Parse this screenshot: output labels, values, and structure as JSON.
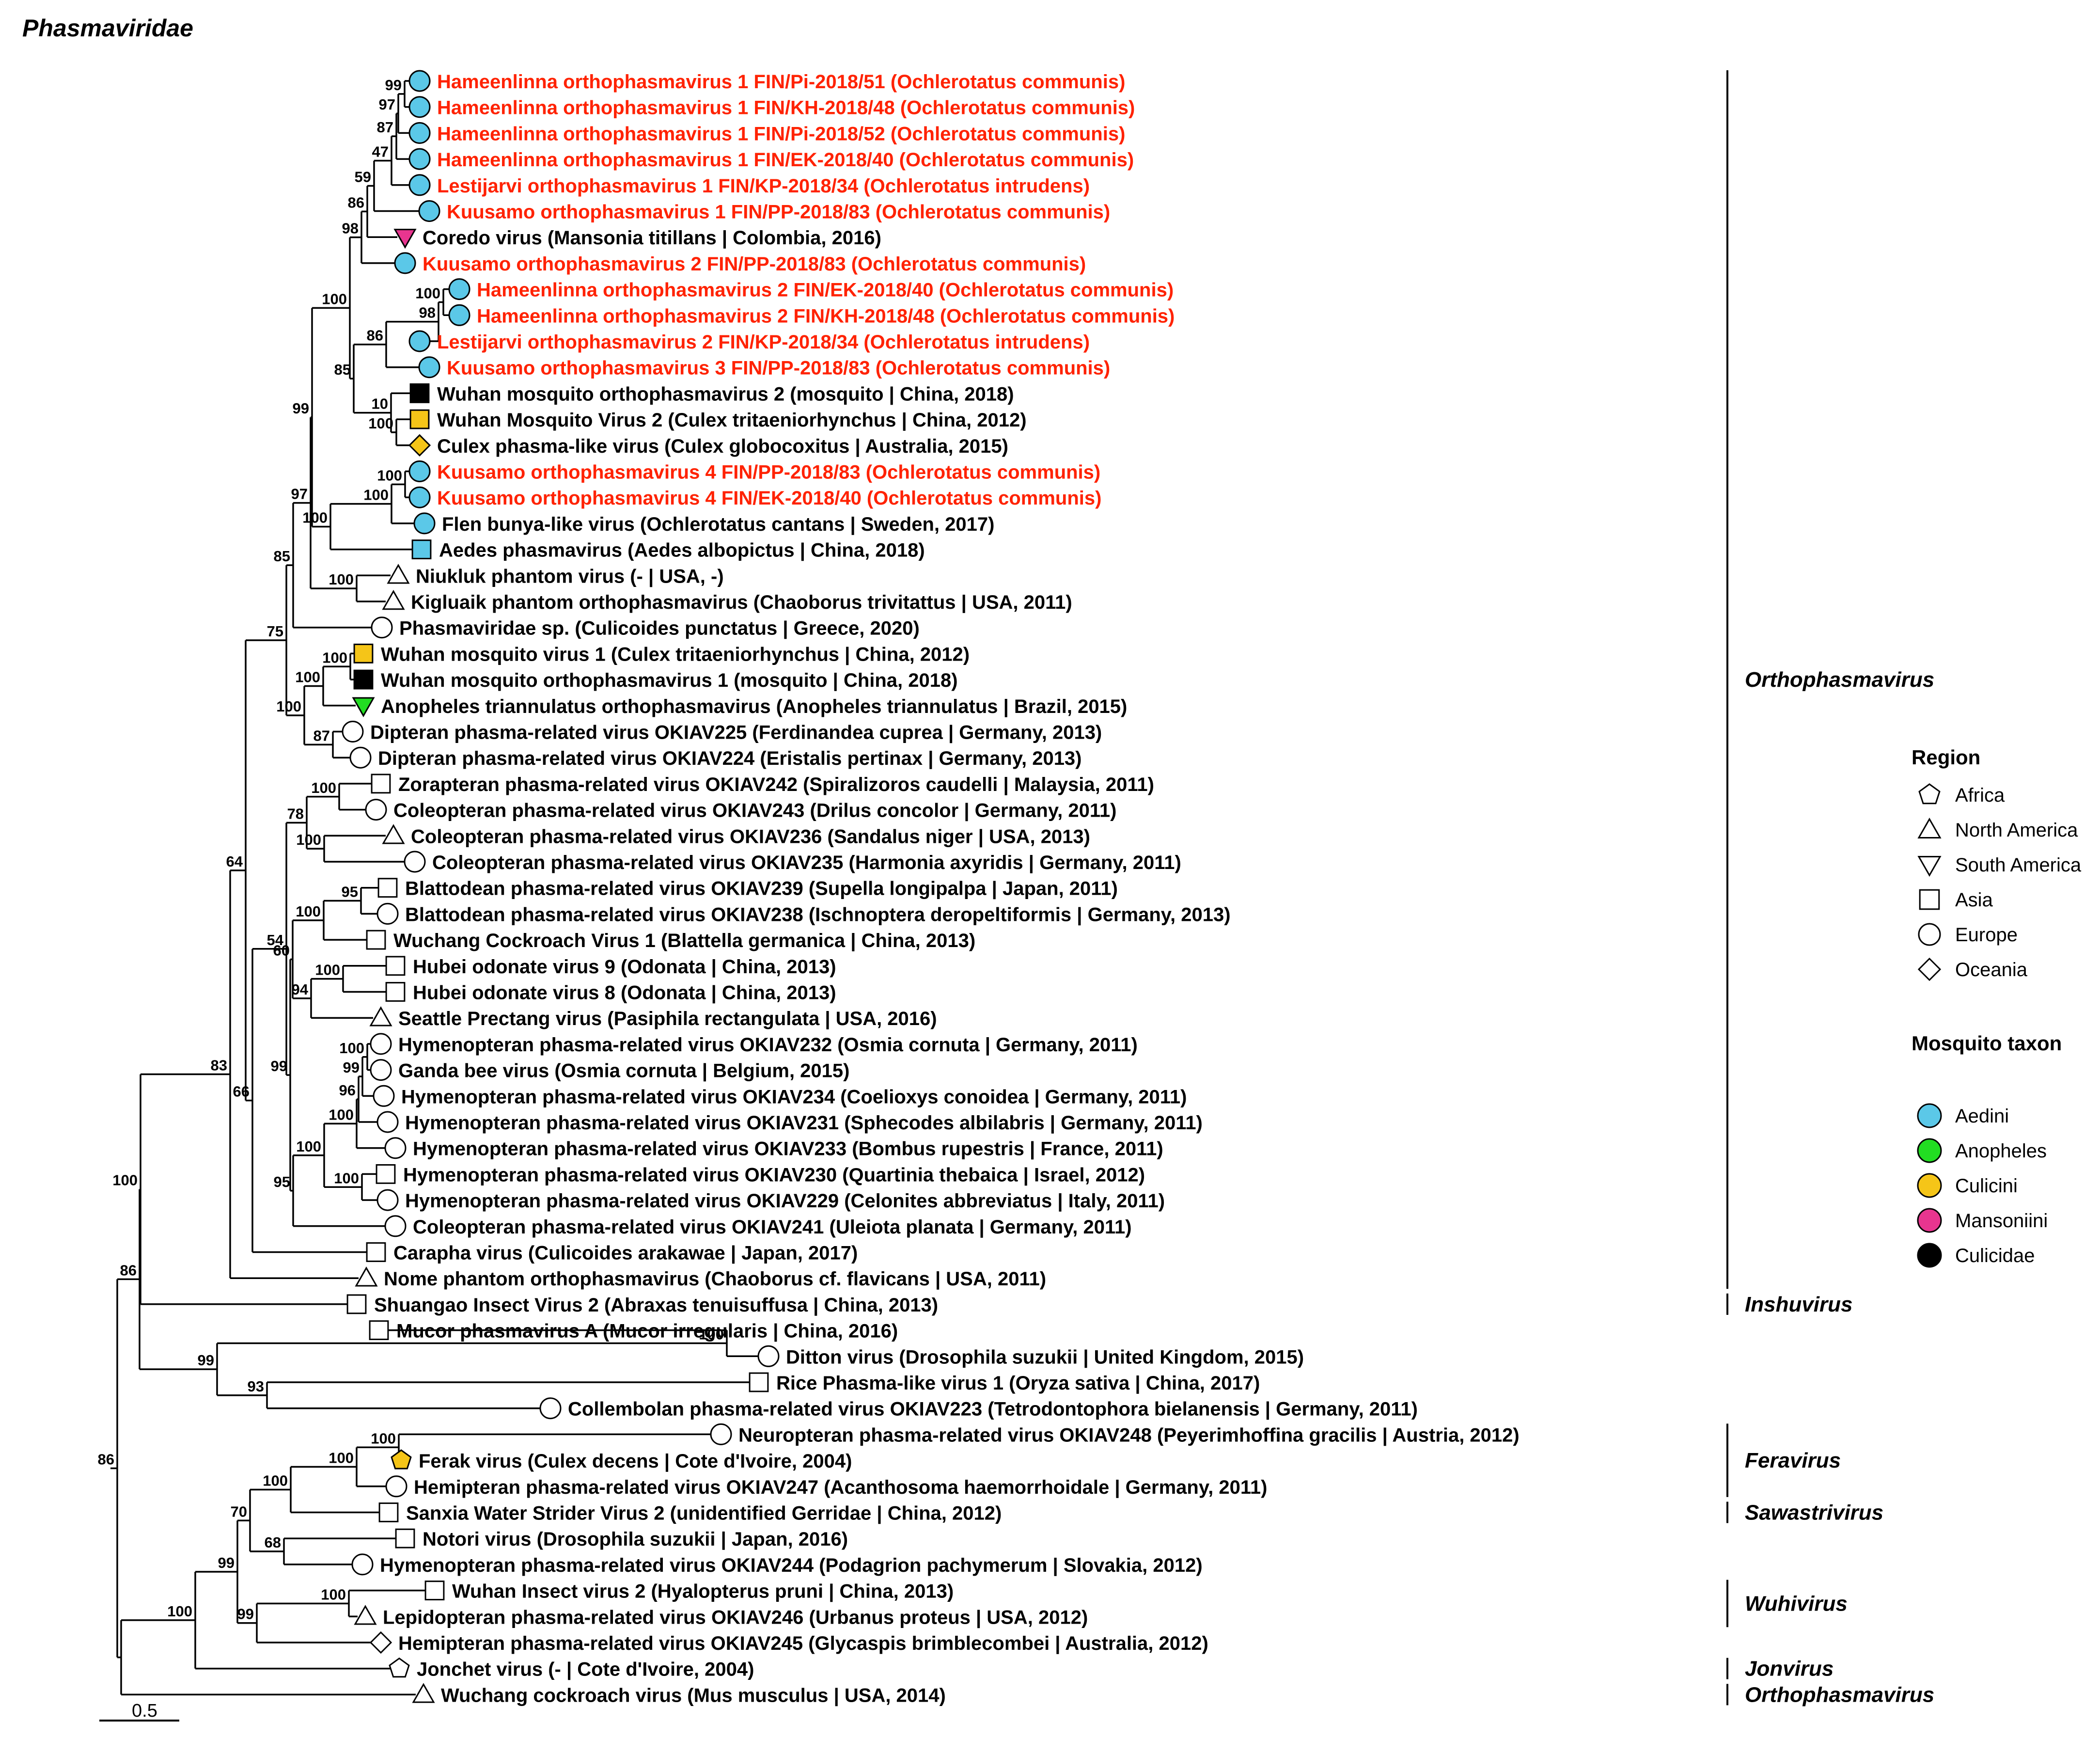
{
  "title": "Phasmaviridae",
  "scale_label": "0.5",
  "colors": {
    "branch": "#000000",
    "highlight_label": "#ff2200",
    "normal_label": "#000000",
    "Aedini": "#5bc8e8",
    "Anopheles": "#22dd22",
    "Culicini": "#f5c518",
    "Mansoniini": "#e8358f",
    "Culicidae": "#000000",
    "none": "#ffffff"
  },
  "legend": {
    "region_title": "Region",
    "regions": [
      {
        "shape": "pentagon",
        "label": "Africa"
      },
      {
        "shape": "triangle-up",
        "label": "North America"
      },
      {
        "shape": "triangle-down",
        "label": "South America"
      },
      {
        "shape": "square",
        "label": "Asia"
      },
      {
        "shape": "circle",
        "label": "Europe"
      },
      {
        "shape": "diamond",
        "label": "Oceania"
      }
    ],
    "taxon_title": "Mosquito taxon",
    "taxa": [
      {
        "color_key": "Aedini",
        "label": "Aedini"
      },
      {
        "color_key": "Anopheles",
        "label": "Anopheles"
      },
      {
        "color_key": "Culicini",
        "label": "Culicini"
      },
      {
        "color_key": "Mansoniini",
        "label": "Mansoniini"
      },
      {
        "color_key": "Culicidae",
        "label": "Culicidae"
      }
    ]
  },
  "genera": [
    {
      "label": "Orthophasmavirus",
      "from": 0,
      "to": 46
    },
    {
      "label": "Inshuvirus",
      "from": 47,
      "to": 47
    },
    {
      "label": "Feravirus",
      "from": 52,
      "to": 54
    },
    {
      "label": "Sawastrivirus",
      "from": 55,
      "to": 55
    },
    {
      "label": "Wuhivirus",
      "from": 58,
      "to": 59
    },
    {
      "label": "Jonvirus",
      "from": 61,
      "to": 61
    },
    {
      "label": "Orthophasmavirus",
      "from": 62,
      "to": 62
    }
  ],
  "tips": [
    {
      "label": "Hameenlinna orthophasmavirus 1 FIN/Pi-2018/51 (Ochlerotatus communis)",
      "shape": "circle",
      "fill": "Aedini",
      "red": true
    },
    {
      "label": "Hameenlinna orthophasmavirus 1 FIN/KH-2018/48 (Ochlerotatus communis)",
      "shape": "circle",
      "fill": "Aedini",
      "red": true
    },
    {
      "label": "Hameenlinna orthophasmavirus 1 FIN/Pi-2018/52 (Ochlerotatus communis)",
      "shape": "circle",
      "fill": "Aedini",
      "red": true
    },
    {
      "label": "Hameenlinna orthophasmavirus 1 FIN/EK-2018/40 (Ochlerotatus communis)",
      "shape": "circle",
      "fill": "Aedini",
      "red": true
    },
    {
      "label": "Lestijarvi orthophasmavirus 1 FIN/KP-2018/34 (Ochlerotatus intrudens)",
      "shape": "circle",
      "fill": "Aedini",
      "red": true
    },
    {
      "label": "Kuusamo orthophasmavirus 1 FIN/PP-2018/83 (Ochlerotatus communis)",
      "shape": "circle",
      "fill": "Aedini",
      "red": true
    },
    {
      "label": "Coredo virus (Mansonia titillans | Colombia, 2016)",
      "shape": "triangle-down",
      "fill": "Mansoniini",
      "red": false
    },
    {
      "label": "Kuusamo orthophasmavirus 2 FIN/PP-2018/83 (Ochlerotatus communis)",
      "shape": "circle",
      "fill": "Aedini",
      "red": true
    },
    {
      "label": "Hameenlinna orthophasmavirus 2 FIN/EK-2018/40 (Ochlerotatus communis)",
      "shape": "circle",
      "fill": "Aedini",
      "red": true
    },
    {
      "label": "Hameenlinna orthophasmavirus 2 FIN/KH-2018/48 (Ochlerotatus communis)",
      "shape": "circle",
      "fill": "Aedini",
      "red": true
    },
    {
      "label": "Lestijarvi orthophasmavirus 2 FIN/KP-2018/34 (Ochlerotatus intrudens)",
      "shape": "circle",
      "fill": "Aedini",
      "red": true
    },
    {
      "label": "Kuusamo orthophasmavirus 3 FIN/PP-2018/83 (Ochlerotatus communis)",
      "shape": "circle",
      "fill": "Aedini",
      "red": true
    },
    {
      "label": "Wuhan mosquito orthophasmavirus 2 (mosquito | China, 2018)",
      "shape": "square",
      "fill": "Culicidae",
      "red": false
    },
    {
      "label": "Wuhan Mosquito Virus 2 (Culex tritaeniorhynchus | China, 2012)",
      "shape": "square",
      "fill": "Culicini",
      "red": false
    },
    {
      "label": "Culex phasma-like virus (Culex globocoxitus | Australia, 2015)",
      "shape": "diamond",
      "fill": "Culicini",
      "red": false
    },
    {
      "label": "Kuusamo orthophasmavirus 4 FIN/PP-2018/83 (Ochlerotatus communis)",
      "shape": "circle",
      "fill": "Aedini",
      "red": true
    },
    {
      "label": "Kuusamo orthophasmavirus 4 FIN/EK-2018/40 (Ochlerotatus communis)",
      "shape": "circle",
      "fill": "Aedini",
      "red": true
    },
    {
      "label": "Flen bunya-like virus (Ochlerotatus cantans | Sweden, 2017)",
      "shape": "circle",
      "fill": "Aedini",
      "red": false
    },
    {
      "label": "Aedes phasmavirus (Aedes albopictus | China, 2018)",
      "shape": "square",
      "fill": "Aedini",
      "red": false
    },
    {
      "label": "Niukluk phantom virus (- | USA, -)",
      "shape": "triangle-up",
      "fill": "none",
      "red": false
    },
    {
      "label": "Kigluaik phantom orthophasmavirus (Chaoborus trivitattus | USA, 2011)",
      "shape": "triangle-up",
      "fill": "none",
      "red": false
    },
    {
      "label": "Phasmaviridae sp. (Culicoides punctatus | Greece, 2020)",
      "shape": "circle",
      "fill": "none",
      "red": false
    },
    {
      "label": "Wuhan mosquito virus 1 (Culex tritaeniorhynchus | China, 2012)",
      "shape": "square",
      "fill": "Culicini",
      "red": false
    },
    {
      "label": "Wuhan mosquito orthophasmavirus 1 (mosquito | China, 2018)",
      "shape": "square",
      "fill": "Culicidae",
      "red": false
    },
    {
      "label": "Anopheles triannulatus orthophasmavirus (Anopheles triannulatus | Brazil, 2015)",
      "shape": "triangle-down",
      "fill": "Anopheles",
      "red": false
    },
    {
      "label": "Dipteran phasma-related virus OKIAV225 (Ferdinandea cuprea | Germany, 2013)",
      "shape": "circle",
      "fill": "none",
      "red": false
    },
    {
      "label": "Dipteran phasma-related virus OKIAV224 (Eristalis pertinax | Germany, 2013)",
      "shape": "circle",
      "fill": "none",
      "red": false
    },
    {
      "label": "Zorapteran phasma-related virus OKIAV242 (Spiralizoros caudelli | Malaysia, 2011)",
      "shape": "square",
      "fill": "none",
      "red": false
    },
    {
      "label": "Coleopteran phasma-related virus OKIAV243 (Drilus concolor | Germany, 2011)",
      "shape": "circle",
      "fill": "none",
      "red": false
    },
    {
      "label": "Coleopteran phasma-related virus OKIAV236 (Sandalus niger | USA, 2013)",
      "shape": "triangle-up",
      "fill": "none",
      "red": false
    },
    {
      "label": "Coleopteran phasma-related virus OKIAV235 (Harmonia axyridis | Germany, 2011)",
      "shape": "circle",
      "fill": "none",
      "red": false
    },
    {
      "label": "Blattodean phasma-related virus OKIAV239 (Supella longipalpa | Japan, 2011)",
      "shape": "square",
      "fill": "none",
      "red": false
    },
    {
      "label": "Blattodean phasma-related virus OKIAV238 (Ischnoptera deropeltiformis | Germany, 2013)",
      "shape": "circle",
      "fill": "none",
      "red": false
    },
    {
      "label": "Wuchang Cockroach Virus 1 (Blattella germanica | China, 2013)",
      "shape": "square",
      "fill": "none",
      "red": false
    },
    {
      "label": "Hubei odonate virus 9 (Odonata | China, 2013)",
      "shape": "square",
      "fill": "none",
      "red": false
    },
    {
      "label": "Hubei odonate virus 8 (Odonata | China, 2013)",
      "shape": "square",
      "fill": "none",
      "red": false
    },
    {
      "label": "Seattle Prectang virus (Pasiphila rectangulata | USA, 2016)",
      "shape": "triangle-up",
      "fill": "none",
      "red": false
    },
    {
      "label": "Hymenopteran phasma-related virus OKIAV232 (Osmia cornuta | Germany, 2011)",
      "shape": "circle",
      "fill": "none",
      "red": false
    },
    {
      "label": "Ganda bee virus (Osmia cornuta | Belgium, 2015)",
      "shape": "circle",
      "fill": "none",
      "red": false
    },
    {
      "label": "Hymenopteran phasma-related virus OKIAV234 (Coelioxys conoidea | Germany, 2011)",
      "shape": "circle",
      "fill": "none",
      "red": false
    },
    {
      "label": "Hymenopteran phasma-related virus OKIAV231 (Sphecodes albilabris | Germany, 2011)",
      "shape": "circle",
      "fill": "none",
      "red": false
    },
    {
      "label": "Hymenopteran phasma-related virus OKIAV233 (Bombus rupestris | France, 2011)",
      "shape": "circle",
      "fill": "none",
      "red": false
    },
    {
      "label": "Hymenopteran phasma-related virus OKIAV230 (Quartinia thebaica | Israel, 2012)",
      "shape": "square",
      "fill": "none",
      "red": false
    },
    {
      "label": "Hymenopteran phasma-related virus OKIAV229 (Celonites abbreviatus | Italy, 2011)",
      "shape": "circle",
      "fill": "none",
      "red": false
    },
    {
      "label": "Coleopteran phasma-related virus OKIAV241 (Uleiota planata | Germany, 2011)",
      "shape": "circle",
      "fill": "none",
      "red": false
    },
    {
      "label": "Carapha virus (Culicoides arakawae | Japan, 2017)",
      "shape": "square",
      "fill": "none",
      "red": false
    },
    {
      "label": "Nome phantom orthophasmavirus (Chaoborus cf. flavicans | USA, 2011)",
      "shape": "triangle-up",
      "fill": "none",
      "red": false
    },
    {
      "label": "Shuangao Insect Virus 2 (Abraxas tenuisuffusa | China, 2013)",
      "shape": "square",
      "fill": "none",
      "red": false
    },
    {
      "label": "Mucor phasmavirus A (Mucor irregularis | China, 2016)",
      "shape": "square",
      "fill": "none",
      "red": false
    },
    {
      "label": "Ditton virus (Drosophila suzukii | United Kingdom, 2015)",
      "shape": "circle",
      "fill": "none",
      "red": false
    },
    {
      "label": "Rice Phasma-like virus 1 (Oryza sativa | China, 2017)",
      "shape": "square",
      "fill": "none",
      "red": false
    },
    {
      "label": "Collembolan phasma-related virus OKIAV223 (Tetrodontophora bielanensis | Germany, 2011)",
      "shape": "circle",
      "fill": "none",
      "red": false
    },
    {
      "label": "Neuropteran phasma-related virus OKIAV248 (Peyerimhoffina gracilis | Austria, 2012)",
      "shape": "circle",
      "fill": "none",
      "red": false
    },
    {
      "label": "Ferak virus (Culex decens | Cote d'Ivoire, 2004)",
      "shape": "pentagon",
      "fill": "Culicini",
      "red": false
    },
    {
      "label": "Hemipteran phasma-related virus OKIAV247 (Acanthosoma haemorrhoidale | Germany, 2011)",
      "shape": "circle",
      "fill": "none",
      "red": false
    },
    {
      "label": "Sanxia Water Strider Virus 2 (unidentified Gerridae | China, 2012)",
      "shape": "square",
      "fill": "none",
      "red": false
    },
    {
      "label": "Notori virus (Drosophila suzukii | Japan, 2016)",
      "shape": "square",
      "fill": "none",
      "red": false
    },
    {
      "label": "Hymenopteran phasma-related virus OKIAV244 (Podagrion pachymerum | Slovakia, 2012)",
      "shape": "circle",
      "fill": "none",
      "red": false
    },
    {
      "label": "Wuhan Insect virus 2 (Hyalopterus pruni | China, 2013)",
      "shape": "square",
      "fill": "none",
      "red": false
    },
    {
      "label": "Lepidopteran phasma-related virus OKIAV246 (Urbanus proteus | USA, 2012)",
      "shape": "triangle-up",
      "fill": "none",
      "red": false
    },
    {
      "label": "Hemipteran phasma-related virus OKIAV245 (Glycaspis brimblecombei | Australia, 2012)",
      "shape": "diamond",
      "fill": "none",
      "red": false
    },
    {
      "label": "Jonchet virus (- | Cote d'Ivoire, 2004)",
      "shape": "pentagon",
      "fill": "none",
      "red": false
    },
    {
      "label": "Wuchang cockroach virus (Mus musculus | USA, 2014)",
      "shape": "triangle-up",
      "fill": "none",
      "red": false
    }
  ],
  "nodes": [
    {
      "id": "hk",
      "children": [
        "t0",
        "t1"
      ],
      "support": "99"
    },
    {
      "id": "hp",
      "children": [
        "hk",
        "t2"
      ],
      "support": "97"
    },
    {
      "id": "he",
      "children": [
        "hp",
        "t3"
      ],
      "support": "87"
    },
    {
      "id": "hl",
      "children": [
        "he",
        "t4"
      ],
      "support": "47"
    },
    {
      "id": "k1",
      "children": [
        "hl",
        "t5"
      ],
      "support": "59"
    },
    {
      "id": "co",
      "children": [
        "k1",
        "t6"
      ],
      "support": "86"
    },
    {
      "id": "c1",
      "children": [
        "co",
        "t7"
      ],
      "support": "98"
    },
    {
      "id": "h2",
      "children": [
        "t8",
        "t9"
      ],
      "support": "100"
    },
    {
      "id": "h2l",
      "children": [
        "h2",
        "t10"
      ],
      "support": "98"
    },
    {
      "id": "c2",
      "children": [
        "h2l",
        "t11"
      ],
      "support": "86"
    },
    {
      "id": "wa",
      "children": [
        "t13",
        "t14"
      ],
      "support": "100"
    },
    {
      "id": "wb",
      "children": [
        "t12",
        "wa"
      ],
      "support": "10"
    },
    {
      "id": "c3",
      "children": [
        "c2",
        "wb"
      ],
      "support": "85"
    },
    {
      "id": "c4",
      "children": [
        "c1",
        "c3"
      ],
      "support": "100"
    },
    {
      "id": "k4",
      "children": [
        "t15",
        "t16"
      ],
      "support": "100"
    },
    {
      "id": "k4f",
      "children": [
        "k4",
        "t17"
      ],
      "support": "100"
    },
    {
      "id": "k4a",
      "children": [
        "k4f",
        "t18"
      ],
      "support": "100"
    },
    {
      "id": "c5",
      "children": [
        "c4",
        "k4a"
      ],
      "support": "99"
    },
    {
      "id": "nk",
      "children": [
        "t19",
        "t20"
      ],
      "support": "100"
    },
    {
      "id": "c6",
      "children": [
        "c5",
        "nk"
      ],
      "support": "97"
    },
    {
      "id": "c7",
      "children": [
        "c6",
        "t21"
      ],
      "support": "85"
    },
    {
      "id": "w1",
      "children": [
        "t22",
        "t23"
      ],
      "support": "100"
    },
    {
      "id": "w1a",
      "children": [
        "w1",
        "t24"
      ],
      "support": "100"
    },
    {
      "id": "dp",
      "children": [
        "t25",
        "t26"
      ],
      "support": "87"
    },
    {
      "id": "c8",
      "children": [
        "w1a",
        "dp"
      ],
      "support": "100"
    },
    {
      "id": "c9",
      "children": [
        "c7",
        "c8"
      ],
      "support": "75"
    },
    {
      "id": "zc",
      "children": [
        "t27",
        "t28"
      ],
      "support": "100"
    },
    {
      "id": "cc",
      "children": [
        "t29",
        "t30"
      ],
      "support": "100"
    },
    {
      "id": "zcc",
      "children": [
        "zc",
        "cc"
      ],
      "support": "78"
    },
    {
      "id": "bb",
      "children": [
        "t31",
        "t32"
      ],
      "support": "95"
    },
    {
      "id": "bbw",
      "children": [
        "bb",
        "t33"
      ],
      "support": "100"
    },
    {
      "id": "ho",
      "children": [
        "t34",
        "t35"
      ],
      "support": "100"
    },
    {
      "id": "hos",
      "children": [
        "ho",
        "t36"
      ],
      "support": "94"
    },
    {
      "id": "bho",
      "children": [
        "bbw",
        "hos"
      ],
      "support": "60"
    },
    {
      "id": "g2",
      "children": [
        "t37",
        "t38"
      ],
      "support": "100"
    },
    {
      "id": "g3",
      "children": [
        "g2",
        "t39"
      ],
      "support": "99"
    },
    {
      "id": "g4",
      "children": [
        "g3",
        "t40"
      ],
      "support": "96"
    },
    {
      "id": "g5",
      "children": [
        "g4",
        "t41"
      ],
      "support": "100"
    },
    {
      "id": "qc",
      "children": [
        "t42",
        "t43"
      ],
      "support": "100"
    },
    {
      "id": "g6",
      "children": [
        "g5",
        "qc"
      ],
      "support": "100"
    },
    {
      "id": "g7",
      "children": [
        "g6",
        "t44"
      ],
      "support": "95"
    },
    {
      "id": "bg",
      "children": [
        "bho",
        "g7"
      ],
      "support": "99"
    },
    {
      "id": "zb",
      "children": [
        "zcc",
        "bg"
      ],
      "support": "54"
    },
    {
      "id": "zbc",
      "children": [
        "zb",
        "t45"
      ],
      "support": "66"
    },
    {
      "id": "o1",
      "children": [
        "c9",
        "zbc"
      ],
      "support": "64"
    },
    {
      "id": "o2",
      "children": [
        "o1",
        "t46"
      ],
      "support": "83"
    },
    {
      "id": "o3",
      "children": [
        "o2",
        "t47"
      ],
      "support": "100"
    },
    {
      "id": "md",
      "children": [
        "t48",
        "t49"
      ],
      "support": "100"
    },
    {
      "id": "rc",
      "children": [
        "t50",
        "t51"
      ],
      "support": "93"
    },
    {
      "id": "mr",
      "children": [
        "md",
        "rc"
      ],
      "support": "99"
    },
    {
      "id": "r1",
      "children": [
        "o3",
        "mr"
      ],
      "support": "86"
    },
    {
      "id": "nf",
      "children": [
        "t52",
        "t53"
      ],
      "support": "100"
    },
    {
      "id": "nfh",
      "children": [
        "nf",
        "t54"
      ],
      "support": "100"
    },
    {
      "id": "fs",
      "children": [
        "nfh",
        "t55"
      ],
      "support": "100"
    },
    {
      "id": "nh",
      "children": [
        "t56",
        "t57"
      ],
      "support": "68"
    },
    {
      "id": "fn",
      "children": [
        "fs",
        "nh"
      ],
      "support": "70"
    },
    {
      "id": "wl",
      "children": [
        "t58",
        "t59"
      ],
      "support": "100"
    },
    {
      "id": "wlh",
      "children": [
        "wl",
        "t60"
      ],
      "support": "99"
    },
    {
      "id": "fw",
      "children": [
        "fn",
        "wlh"
      ],
      "support": "99"
    },
    {
      "id": "fwj",
      "children": [
        "fw",
        "t61"
      ],
      "support": "100"
    },
    {
      "id": "r2",
      "children": [
        "fwj",
        "t62"
      ],
      "support": ""
    },
    {
      "id": "root",
      "children": [
        "r1",
        "r2"
      ],
      "support": "86"
    }
  ]
}
